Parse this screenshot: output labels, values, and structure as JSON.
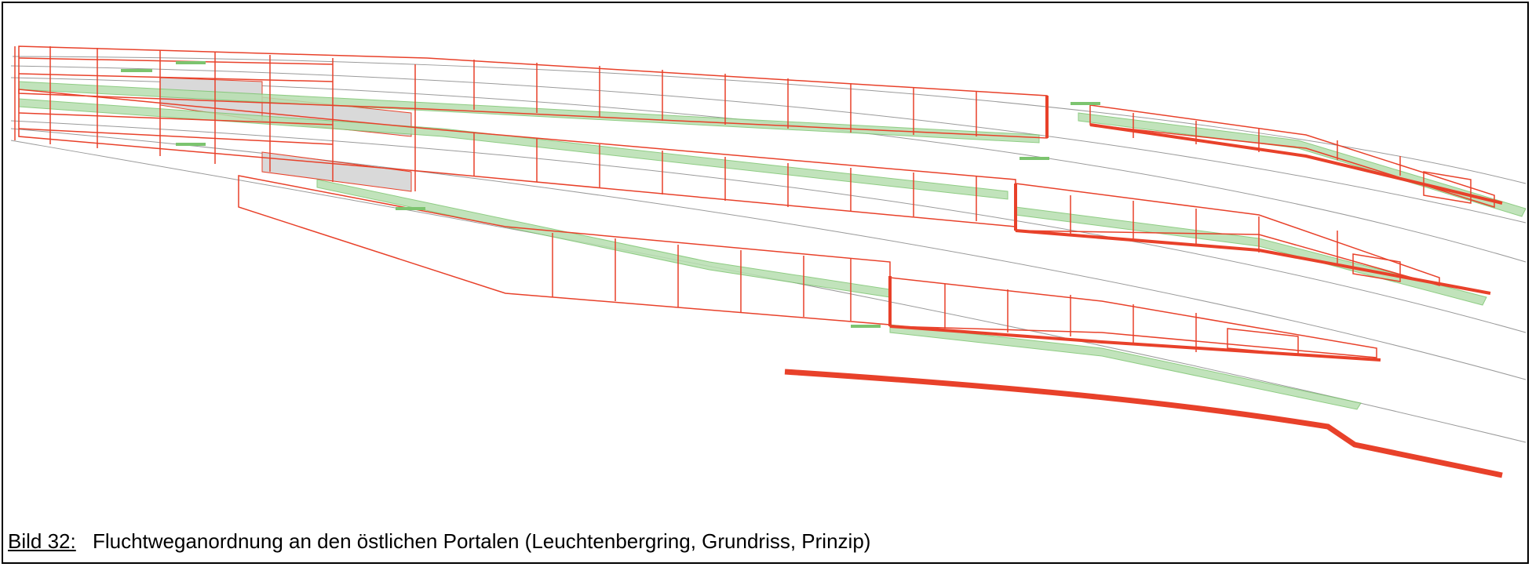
{
  "caption": {
    "label": "Bild 32:",
    "text": "Fluchtweganordnung an den östlichen Portalen (Leuchtenbergring, Grundriss, Prinzip)"
  },
  "colors": {
    "structure": "#e8412a",
    "escape_route": "#b7dfb0",
    "escape_route_edge": "#7cc46f",
    "alignment": "#9a9a9a",
    "hatch": "#cfcfcf",
    "frame": "#000000"
  }
}
